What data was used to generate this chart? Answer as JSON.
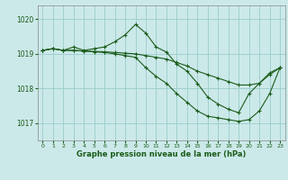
{
  "xlabel": "Graphe pression niveau de la mer (hPa)",
  "x": [
    0,
    1,
    2,
    3,
    4,
    5,
    6,
    7,
    8,
    9,
    10,
    11,
    12,
    13,
    14,
    15,
    16,
    17,
    18,
    19,
    20,
    21,
    22,
    23
  ],
  "line_peak": [
    1019.1,
    1019.15,
    1019.1,
    1019.2,
    1019.1,
    1019.15,
    1019.2,
    1019.35,
    1019.55,
    1019.85,
    1019.6,
    1019.2,
    1019.05,
    1018.7,
    1018.5,
    1018.15,
    1017.75,
    1017.55,
    1017.4,
    1017.3,
    1017.85,
    1018.15,
    1018.45,
    1018.6
  ],
  "line_mid": [
    1019.1,
    1019.15,
    1019.1,
    1019.1,
    1019.08,
    1019.07,
    1019.06,
    1019.04,
    1019.02,
    1019.0,
    1018.95,
    1018.9,
    1018.85,
    1018.75,
    1018.65,
    1018.5,
    1018.4,
    1018.3,
    1018.2,
    1018.1,
    1018.1,
    1018.15,
    1018.4,
    1018.6
  ],
  "line_low": [
    1019.1,
    1019.15,
    1019.1,
    1019.1,
    1019.08,
    1019.06,
    1019.04,
    1019.0,
    1018.95,
    1018.9,
    1018.6,
    1018.35,
    1018.15,
    1017.85,
    1017.6,
    1017.35,
    1017.2,
    1017.15,
    1017.1,
    1017.05,
    1017.1,
    1017.35,
    1017.85,
    1018.6
  ],
  "bg_color": "#cce9e9",
  "line_color": "#1a5c1a",
  "grid_color": "#99cccc",
  "ylim": [
    1016.5,
    1020.4
  ],
  "yticks": [
    1017,
    1018,
    1019,
    1020
  ],
  "xticks": [
    0,
    1,
    2,
    3,
    4,
    5,
    6,
    7,
    8,
    9,
    10,
    11,
    12,
    13,
    14,
    15,
    16,
    17,
    18,
    19,
    20,
    21,
    22,
    23
  ]
}
